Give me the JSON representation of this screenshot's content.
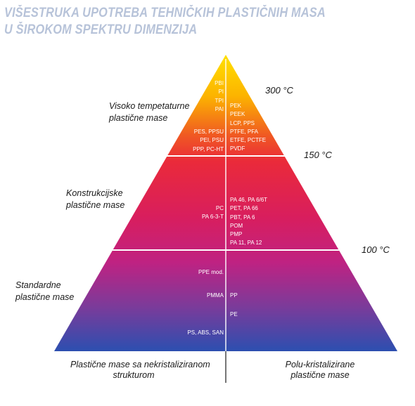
{
  "title": {
    "line1": "VIŠESTRUKA UPOTREBA TEHNIČKIH PLASTIČNIH MASA",
    "line2": "U ŠIROKOM SPEKTRU DIMENZIJA"
  },
  "tiers": {
    "high": {
      "label_line1": "Visoko tempetaturne",
      "label_line2": "plastične mase",
      "temperature": "300 °C",
      "left": [
        "PBI",
        "PI",
        "TPI",
        "PAI",
        "",
        "",
        "PES, PPSU",
        "PEI, PSU",
        "PPP, PC-HT"
      ],
      "right": [
        "PEK",
        "PEEK",
        "LCP, PPS",
        "PTFE, PFA",
        "ETFE, PCTFE",
        "PVDF"
      ]
    },
    "engineering": {
      "label_line1": "Konstrukcijske",
      "label_line2": "plastične mase",
      "temperature_top": "150 °C",
      "left": [
        "PC",
        "PA 6-3-T"
      ],
      "right": [
        "PA 46, PA 6/6T",
        "PET, PA 66",
        "PBT, PA 6",
        "POM",
        "PMP",
        "PA 11, PA 12"
      ]
    },
    "standard": {
      "label_line1": "Standardne",
      "label_line2": "plastične mase",
      "temperature_top": "100 °C",
      "left": [
        "PPE mod.",
        "PMMA",
        "PS, ABS, SAN"
      ],
      "right": [
        "PP",
        "PE"
      ]
    }
  },
  "bottom": {
    "left_line1": "Plastične mase sa nekristaliziranom",
    "left_line2": "strukturom",
    "right_line1": "Polu-kristalizirane",
    "right_line2": "plastične mase"
  },
  "colors": {
    "title": "#b7c3d9",
    "top": "#ffd200",
    "upper": "#f0302a",
    "middle": "#cc1f74",
    "bottom": "#2c4fb0",
    "divider": "#ffffff"
  }
}
